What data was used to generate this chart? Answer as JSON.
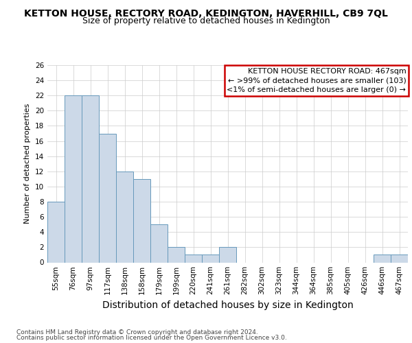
{
  "title": "KETTON HOUSE, RECTORY ROAD, KEDINGTON, HAVERHILL, CB9 7QL",
  "subtitle": "Size of property relative to detached houses in Kedington",
  "xlabel": "Distribution of detached houses by size in Kedington",
  "ylabel": "Number of detached properties",
  "categories": [
    "55sqm",
    "76sqm",
    "97sqm",
    "117sqm",
    "138sqm",
    "158sqm",
    "179sqm",
    "199sqm",
    "220sqm",
    "241sqm",
    "261sqm",
    "282sqm",
    "302sqm",
    "323sqm",
    "344sqm",
    "364sqm",
    "385sqm",
    "405sqm",
    "426sqm",
    "446sqm",
    "467sqm"
  ],
  "values": [
    8,
    22,
    22,
    17,
    12,
    11,
    5,
    2,
    1,
    1,
    2,
    0,
    0,
    0,
    0,
    0,
    0,
    0,
    0,
    1,
    1
  ],
  "bar_color": "#ccd9e8",
  "bar_edge_color": "#6699bb",
  "last_bar_color": "#ccd9e8",
  "last_bar_edge_color": "#6699bb",
  "annotation_box_text": "KETTON HOUSE RECTORY ROAD: 467sqm\n← >99% of detached houses are smaller (103)\n<1% of semi-detached houses are larger (0) →",
  "annotation_box_edge_color": "#cc0000",
  "ylim": [
    0,
    26
  ],
  "yticks": [
    0,
    2,
    4,
    6,
    8,
    10,
    12,
    14,
    16,
    18,
    20,
    22,
    24,
    26
  ],
  "footer_line1": "Contains HM Land Registry data © Crown copyright and database right 2024.",
  "footer_line2": "Contains public sector information licensed under the Open Government Licence v3.0.",
  "title_fontsize": 10,
  "subtitle_fontsize": 9,
  "xlabel_fontsize": 10,
  "ylabel_fontsize": 8,
  "tick_fontsize": 7.5,
  "annotation_fontsize": 8,
  "footer_fontsize": 6.5,
  "bg_color": "#ffffff"
}
